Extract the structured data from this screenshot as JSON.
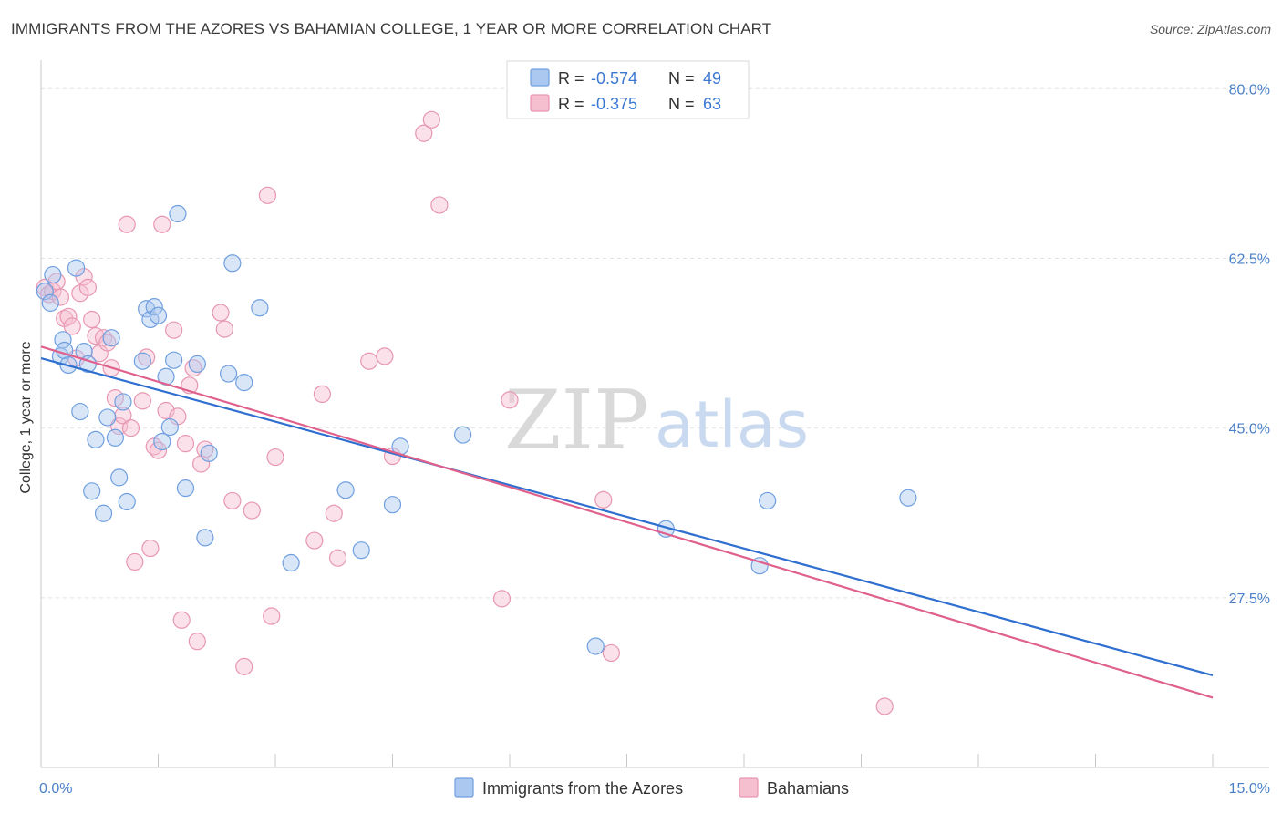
{
  "title": "IMMIGRANTS FROM THE AZORES VS BAHAMIAN COLLEGE, 1 YEAR OR MORE CORRELATION CHART",
  "source": "Source: ZipAtlas.com",
  "colors": {
    "blue_fill": "#aac8f0",
    "blue_stroke": "#6f9fe0",
    "blue_line": "#2f6fd0",
    "pink_fill": "#f6bfd0",
    "pink_stroke": "#e896b2",
    "pink_line": "#e0608c",
    "grid": "#e2e2e2",
    "axis_text": "#4a7fc9"
  },
  "legend": {
    "r_label": "R =",
    "n_label": "N =",
    "blue_r": "-0.574",
    "blue_n": "49",
    "pink_r": "-0.375",
    "pink_n": "63"
  },
  "watermark": {
    "zip": "ZIP",
    "atlas": "atlas"
  },
  "chart_data": {
    "type": "scatter",
    "title": "IMMIGRANTS FROM THE AZORES VS BAHAMIAN COLLEGE, 1 YEAR OR MORE CORRELATION CHART",
    "xlabel": "",
    "ylabel": "College, 1 year or more",
    "xlim": [
      0,
      15
    ],
    "ylim": [
      10,
      82
    ],
    "x_tick_labels": [
      "0.0%",
      "15.0%"
    ],
    "y_ticks": [
      80,
      62.5,
      45,
      27.5
    ],
    "y_tick_labels": [
      "80.0%",
      "62.5%",
      "45.0%",
      "27.5%"
    ],
    "grid": true,
    "legend_position": "top-center",
    "series": [
      {
        "name": "Immigrants from the Azores",
        "color": "#aac8f0",
        "trend": {
          "x": [
            0,
            15
          ],
          "y": [
            52.2,
            19.5
          ]
        },
        "points": [
          [
            0.05,
            59.1
          ],
          [
            0.12,
            57.9
          ],
          [
            0.15,
            60.8
          ],
          [
            0.25,
            52.4
          ],
          [
            0.28,
            54.1
          ],
          [
            0.3,
            53.0
          ],
          [
            0.35,
            51.5
          ],
          [
            0.45,
            61.5
          ],
          [
            0.5,
            46.7
          ],
          [
            0.55,
            52.9
          ],
          [
            0.6,
            51.6
          ],
          [
            0.65,
            38.5
          ],
          [
            0.7,
            43.8
          ],
          [
            0.8,
            36.2
          ],
          [
            0.85,
            46.1
          ],
          [
            0.9,
            54.3
          ],
          [
            0.95,
            44.0
          ],
          [
            1.0,
            39.9
          ],
          [
            1.05,
            47.7
          ],
          [
            1.1,
            37.4
          ],
          [
            1.3,
            51.9
          ],
          [
            1.35,
            57.3
          ],
          [
            1.4,
            56.2
          ],
          [
            1.45,
            57.5
          ],
          [
            1.5,
            56.6
          ],
          [
            1.55,
            43.6
          ],
          [
            1.6,
            50.3
          ],
          [
            1.65,
            45.1
          ],
          [
            1.7,
            52.0
          ],
          [
            1.75,
            67.1
          ],
          [
            1.85,
            38.8
          ],
          [
            2.0,
            51.6
          ],
          [
            2.1,
            33.7
          ],
          [
            2.15,
            42.4
          ],
          [
            2.4,
            50.6
          ],
          [
            2.45,
            62.0
          ],
          [
            2.6,
            49.7
          ],
          [
            2.8,
            57.4
          ],
          [
            3.2,
            31.1
          ],
          [
            3.9,
            38.6
          ],
          [
            4.1,
            32.4
          ],
          [
            4.5,
            37.1
          ],
          [
            4.6,
            43.1
          ],
          [
            5.4,
            44.3
          ],
          [
            7.1,
            22.5
          ],
          [
            8.0,
            34.6
          ],
          [
            9.2,
            30.8
          ],
          [
            9.3,
            37.5
          ],
          [
            11.1,
            37.8
          ]
        ]
      },
      {
        "name": "Bahamians",
        "color": "#f6bfd0",
        "trend": {
          "x": [
            0,
            15
          ],
          "y": [
            53.4,
            17.2
          ]
        },
        "points": [
          [
            0.05,
            59.5
          ],
          [
            0.1,
            58.8
          ],
          [
            0.15,
            59.1
          ],
          [
            0.2,
            60.1
          ],
          [
            0.25,
            58.5
          ],
          [
            0.3,
            56.3
          ],
          [
            0.35,
            56.5
          ],
          [
            0.4,
            55.5
          ],
          [
            0.45,
            52.2
          ],
          [
            0.5,
            58.9
          ],
          [
            0.55,
            60.6
          ],
          [
            0.6,
            59.5
          ],
          [
            0.65,
            56.2
          ],
          [
            0.7,
            54.5
          ],
          [
            0.75,
            52.7
          ],
          [
            0.8,
            54.3
          ],
          [
            0.85,
            53.8
          ],
          [
            0.9,
            51.2
          ],
          [
            0.95,
            48.1
          ],
          [
            1.0,
            45.2
          ],
          [
            1.05,
            46.3
          ],
          [
            1.1,
            66.0
          ],
          [
            1.15,
            45.0
          ],
          [
            1.2,
            31.2
          ],
          [
            1.3,
            47.8
          ],
          [
            1.35,
            52.3
          ],
          [
            1.4,
            32.6
          ],
          [
            1.45,
            43.1
          ],
          [
            1.5,
            42.7
          ],
          [
            1.55,
            66.0
          ],
          [
            1.6,
            46.8
          ],
          [
            1.7,
            55.1
          ],
          [
            1.75,
            46.2
          ],
          [
            1.8,
            25.2
          ],
          [
            1.85,
            43.4
          ],
          [
            1.9,
            49.4
          ],
          [
            1.95,
            51.2
          ],
          [
            2.0,
            23.0
          ],
          [
            2.05,
            41.3
          ],
          [
            2.1,
            42.8
          ],
          [
            2.3,
            56.9
          ],
          [
            2.35,
            55.2
          ],
          [
            2.45,
            37.5
          ],
          [
            2.6,
            20.4
          ],
          [
            2.7,
            36.5
          ],
          [
            2.9,
            69.0
          ],
          [
            2.95,
            25.6
          ],
          [
            3.0,
            42.0
          ],
          [
            3.5,
            33.4
          ],
          [
            3.6,
            48.5
          ],
          [
            3.75,
            36.2
          ],
          [
            3.8,
            31.6
          ],
          [
            4.2,
            51.9
          ],
          [
            4.4,
            52.4
          ],
          [
            4.5,
            42.1
          ],
          [
            4.9,
            75.4
          ],
          [
            5.0,
            76.8
          ],
          [
            5.1,
            68.0
          ],
          [
            5.9,
            27.4
          ],
          [
            6.0,
            47.9
          ],
          [
            7.2,
            37.6
          ],
          [
            7.3,
            21.8
          ],
          [
            10.8,
            16.3
          ]
        ]
      }
    ]
  }
}
